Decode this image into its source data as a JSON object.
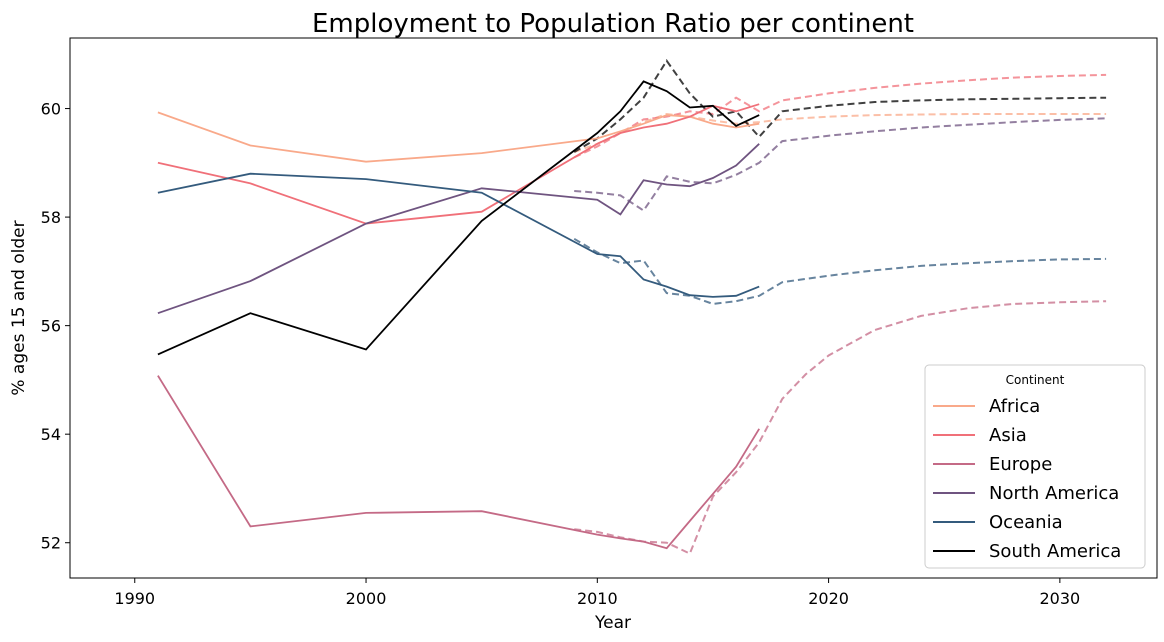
{
  "chart_data": {
    "type": "line",
    "title": "Employment to Population Ratio per continent",
    "xlabel": "Year",
    "ylabel": "% ages 15 and older",
    "xlim": [
      1987.2,
      2034.2
    ],
    "ylim": [
      51.35,
      61.3
    ],
    "xticks": [
      1990,
      2000,
      2010,
      2020,
      2030
    ],
    "yticks": [
      52,
      54,
      56,
      58,
      60
    ],
    "grid": false,
    "legend": {
      "title": "Continent",
      "position": "lower-right"
    },
    "series": [
      {
        "name": "Africa",
        "color": "#f9a98a",
        "actual": {
          "x": [
            1991,
            1995,
            2000,
            2005,
            2010,
            2011,
            2012,
            2013,
            2014,
            2015,
            2016,
            2017
          ],
          "y": [
            59.93,
            59.32,
            59.02,
            59.18,
            59.45,
            59.58,
            59.72,
            59.88,
            59.85,
            59.72,
            59.65,
            59.72
          ]
        },
        "forecast": {
          "x": [
            2009,
            2010,
            2011,
            2012,
            2013,
            2014,
            2015,
            2016,
            2017,
            2018,
            2020,
            2022,
            2024,
            2026,
            2028,
            2030,
            2032
          ],
          "y": [
            59.2,
            59.35,
            59.55,
            59.75,
            59.9,
            59.85,
            59.78,
            59.72,
            59.75,
            59.8,
            59.85,
            59.88,
            59.89,
            59.9,
            59.9,
            59.9,
            59.9
          ]
        }
      },
      {
        "name": "Asia",
        "color": "#f07079",
        "actual": {
          "x": [
            1991,
            1995,
            2000,
            2005,
            2010,
            2011,
            2012,
            2013,
            2014,
            2015,
            2016,
            2017
          ],
          "y": [
            59.0,
            58.62,
            57.88,
            58.1,
            59.35,
            59.55,
            59.65,
            59.72,
            59.85,
            60.05,
            59.95,
            60.08
          ]
        },
        "forecast": {
          "x": [
            2009,
            2010,
            2011,
            2012,
            2013,
            2014,
            2015,
            2016,
            2017,
            2018,
            2020,
            2022,
            2024,
            2026,
            2028,
            2030,
            2032
          ],
          "y": [
            59.1,
            59.3,
            59.55,
            59.8,
            59.85,
            59.95,
            59.9,
            60.2,
            59.95,
            60.15,
            60.28,
            60.38,
            60.46,
            60.52,
            60.57,
            60.6,
            60.62
          ]
        }
      },
      {
        "name": "Europe",
        "color": "#c46a86",
        "actual": {
          "x": [
            1991,
            1995,
            2000,
            2005,
            2010,
            2011,
            2012,
            2013,
            2014,
            2015,
            2016,
            2017
          ],
          "y": [
            55.08,
            52.3,
            52.55,
            52.58,
            52.15,
            52.08,
            52.02,
            51.9,
            52.4,
            52.9,
            53.4,
            54.1
          ]
        },
        "forecast": {
          "x": [
            2009,
            2010,
            2011,
            2012,
            2013,
            2014,
            2015,
            2016,
            2017,
            2018,
            2019,
            2020,
            2022,
            2024,
            2026,
            2028,
            2030,
            2032
          ],
          "y": [
            52.25,
            52.2,
            52.1,
            52.02,
            52.0,
            51.8,
            52.85,
            53.3,
            53.85,
            54.65,
            55.1,
            55.45,
            55.92,
            56.18,
            56.32,
            56.4,
            56.43,
            56.45
          ]
        }
      },
      {
        "name": "North America",
        "color": "#6f5480",
        "actual": {
          "x": [
            1991,
            1995,
            2000,
            2005,
            2010,
            2011,
            2012,
            2013,
            2014,
            2015,
            2016,
            2017
          ],
          "y": [
            56.23,
            56.82,
            57.88,
            58.53,
            58.32,
            58.05,
            58.68,
            58.6,
            58.57,
            58.72,
            58.95,
            59.35
          ]
        },
        "forecast": {
          "x": [
            2009,
            2010,
            2011,
            2012,
            2013,
            2014,
            2015,
            2016,
            2017,
            2018,
            2020,
            2022,
            2024,
            2026,
            2028,
            2030,
            2032
          ],
          "y": [
            58.48,
            58.45,
            58.4,
            58.12,
            58.75,
            58.65,
            58.62,
            58.78,
            59.0,
            59.4,
            59.5,
            59.58,
            59.65,
            59.7,
            59.75,
            59.79,
            59.82
          ]
        }
      },
      {
        "name": "Oceania",
        "color": "#345b7d",
        "actual": {
          "x": [
            1991,
            1995,
            2000,
            2005,
            2010,
            2011,
            2012,
            2013,
            2014,
            2015,
            2016,
            2017
          ],
          "y": [
            58.45,
            58.8,
            58.7,
            58.45,
            57.32,
            57.28,
            56.85,
            56.72,
            56.56,
            56.53,
            56.55,
            56.72
          ]
        },
        "forecast": {
          "x": [
            2009,
            2010,
            2011,
            2012,
            2013,
            2014,
            2015,
            2016,
            2017,
            2018,
            2020,
            2022,
            2024,
            2026,
            2028,
            2030,
            2032
          ],
          "y": [
            57.6,
            57.35,
            57.15,
            57.2,
            56.6,
            56.55,
            56.4,
            56.45,
            56.55,
            56.8,
            56.92,
            57.02,
            57.1,
            57.15,
            57.19,
            57.22,
            57.23
          ]
        }
      },
      {
        "name": "South America",
        "color": "#000000",
        "actual": {
          "x": [
            1991,
            1995,
            2000,
            2005,
            2010,
            2011,
            2012,
            2013,
            2014,
            2015,
            2016,
            2017
          ],
          "y": [
            55.47,
            56.23,
            55.56,
            57.93,
            59.55,
            59.95,
            60.5,
            60.32,
            60.02,
            60.05,
            59.68,
            59.88
          ]
        },
        "forecast": {
          "x": [
            2009,
            2010,
            2011,
            2012,
            2013,
            2014,
            2015,
            2016,
            2017,
            2018,
            2020,
            2022,
            2024,
            2026,
            2028,
            2030,
            2032
          ],
          "y": [
            59.2,
            59.45,
            59.8,
            60.2,
            60.88,
            60.28,
            59.85,
            59.95,
            59.48,
            59.95,
            60.05,
            60.12,
            60.15,
            60.17,
            60.18,
            60.19,
            60.2
          ]
        }
      }
    ]
  }
}
